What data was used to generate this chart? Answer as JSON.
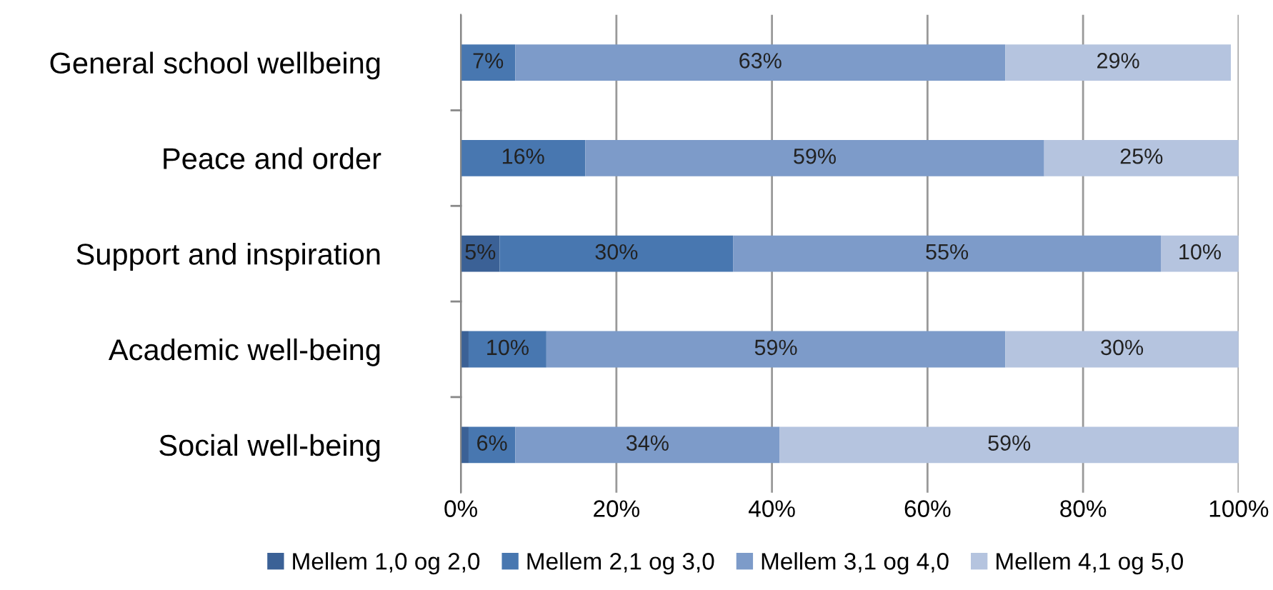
{
  "chart_data": {
    "type": "bar",
    "orientation": "horizontal",
    "stacked": true,
    "categories": [
      "General school wellbeing",
      "Peace and order",
      "Support and inspiration",
      "Academic well-being",
      "Social well-being"
    ],
    "series": [
      {
        "name": "Mellem 1,0 og 2,0",
        "color": "#3b6196",
        "values": [
          0,
          0,
          5,
          1,
          1
        ],
        "value_labels": [
          null,
          null,
          "5%",
          null,
          null
        ]
      },
      {
        "name": "Mellem 2,1 og 3,0",
        "color": "#4877b0",
        "values": [
          7,
          16,
          30,
          10,
          6
        ],
        "value_labels": [
          "7%",
          "16%",
          "30%",
          "10%",
          "6%"
        ]
      },
      {
        "name": "Mellem 3,1 og 4,0",
        "color": "#7d9bc9",
        "values": [
          63,
          59,
          55,
          59,
          34
        ],
        "value_labels": [
          "63%",
          "59%",
          "55%",
          "59%",
          "34%"
        ]
      },
      {
        "name": "Mellem 4,1 og 5,0",
        "color": "#b5c4df",
        "values": [
          29,
          25,
          10,
          30,
          59
        ],
        "value_labels": [
          "29%",
          "25%",
          "10%",
          "30%",
          "59%"
        ]
      }
    ],
    "xlim": [
      0,
      100
    ],
    "xticks": [
      {
        "value": 0,
        "label": "0%"
      },
      {
        "value": 20,
        "label": "20%"
      },
      {
        "value": 40,
        "label": "40%"
      },
      {
        "value": 60,
        "label": "60%"
      },
      {
        "value": 80,
        "label": "80%"
      },
      {
        "value": 100,
        "label": "100%"
      }
    ],
    "grid": "x",
    "legend": "bottom"
  }
}
